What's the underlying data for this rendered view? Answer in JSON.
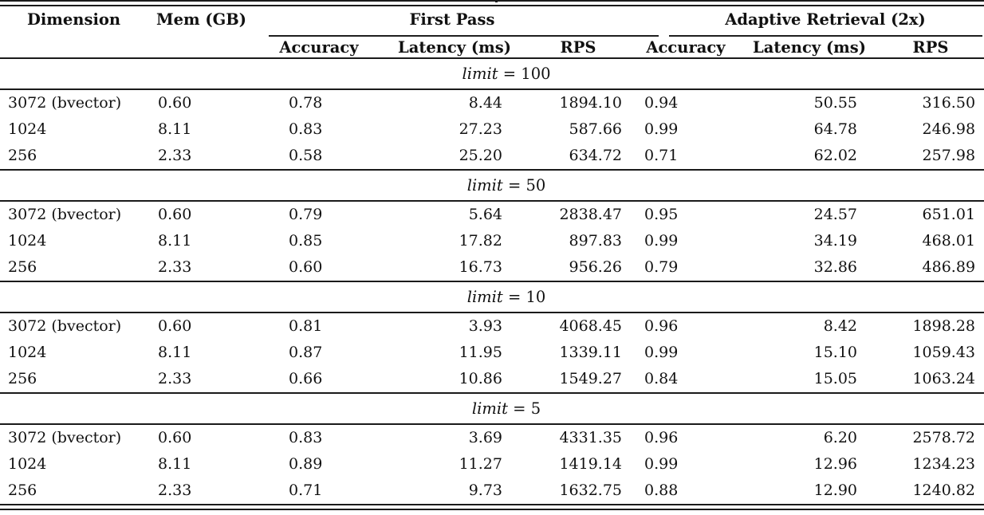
{
  "colors": {
    "text": "#111111",
    "rule": "#1a1a1a",
    "background": "#ffffff"
  },
  "table": {
    "col_dimension": "Dimension",
    "col_mem": "Mem (GB)",
    "groups": [
      {
        "label": "First Pass",
        "sub": [
          "Accuracy",
          "Latency (ms)",
          "RPS"
        ]
      },
      {
        "label": "Adaptive Retrieval (2x)",
        "sub": [
          "Accuracy",
          "Latency (ms)",
          "RPS"
        ]
      }
    ],
    "limit_word": "limit",
    "sections": [
      {
        "limit_rest": "= 100",
        "rows": [
          {
            "cells": [
              "3072 (bvector)",
              "0.60",
              "0.78",
              "8.44",
              "1894.10",
              "0.94",
              "50.55",
              "316.50"
            ]
          },
          {
            "cells": [
              "1024",
              "8.11",
              "0.83",
              "27.23",
              "587.66",
              "0.99",
              "64.78",
              "246.98"
            ]
          },
          {
            "cells": [
              "256",
              "2.33",
              "0.58",
              "25.20",
              "634.72",
              "0.71",
              "62.02",
              "257.98"
            ]
          }
        ]
      },
      {
        "limit_rest": "= 50",
        "rows": [
          {
            "cells": [
              "3072 (bvector)",
              "0.60",
              "0.79",
              "5.64",
              "2838.47",
              "0.95",
              "24.57",
              "651.01"
            ]
          },
          {
            "cells": [
              "1024",
              "8.11",
              "0.85",
              "17.82",
              "897.83",
              "0.99",
              "34.19",
              "468.01"
            ]
          },
          {
            "cells": [
              "256",
              "2.33",
              "0.60",
              "16.73",
              "956.26",
              "0.79",
              "32.86",
              "486.89"
            ]
          }
        ]
      },
      {
        "limit_rest": "= 10",
        "rows": [
          {
            "cells": [
              "3072 (bvector)",
              "0.60",
              "0.81",
              "3.93",
              "4068.45",
              "0.96",
              "8.42",
              "1898.28"
            ]
          },
          {
            "cells": [
              "1024",
              "8.11",
              "0.87",
              "11.95",
              "1339.11",
              "0.99",
              "15.10",
              "1059.43"
            ]
          },
          {
            "cells": [
              "256",
              "2.33",
              "0.66",
              "10.86",
              "1549.27",
              "0.84",
              "15.05",
              "1063.24"
            ]
          }
        ]
      },
      {
        "limit_rest": "= 5",
        "rows": [
          {
            "cells": [
              "3072 (bvector)",
              "0.60",
              "0.83",
              "3.69",
              "4331.35",
              "0.96",
              "6.20",
              "2578.72"
            ]
          },
          {
            "cells": [
              "1024",
              "8.11",
              "0.89",
              "11.27",
              "1419.14",
              "0.99",
              "12.96",
              "1234.23"
            ]
          },
          {
            "cells": [
              "256",
              "2.33",
              "0.71",
              "9.73",
              "1632.75",
              "0.88",
              "12.90",
              "1240.82"
            ]
          }
        ]
      }
    ]
  }
}
